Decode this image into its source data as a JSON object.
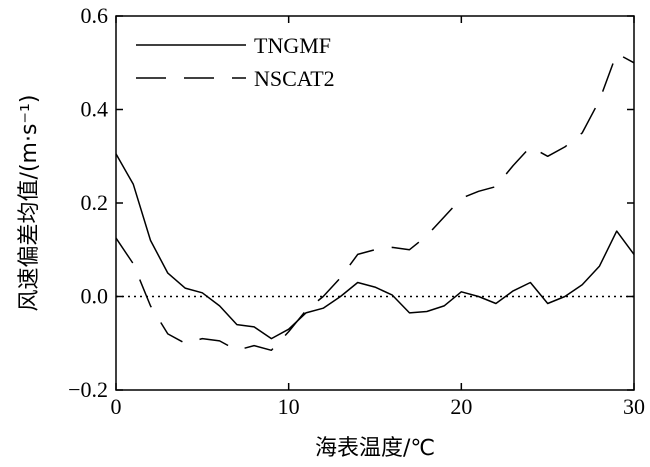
{
  "chart_data": {
    "type": "line",
    "xlabel": "海表温度/℃",
    "ylabel": "风速偏差均值/(m·s⁻¹)",
    "xlim": [
      0,
      30
    ],
    "ylim": [
      -0.2,
      0.6
    ],
    "xticks": [
      "0",
      "10",
      "20",
      "30"
    ],
    "yticks": [
      "−0.2",
      "0.0",
      "0.2",
      "0.4",
      "0.6"
    ],
    "legend_position": "top-left",
    "series": [
      {
        "name": "TNGMF",
        "style": "solid",
        "x": [
          0,
          1,
          2,
          3,
          4,
          5,
          6,
          7,
          8,
          9,
          10,
          11,
          12,
          13,
          14,
          15,
          16,
          17,
          18,
          19,
          20,
          21,
          22,
          23,
          24,
          25,
          26,
          27,
          28,
          29,
          30
        ],
        "y": [
          0.305,
          0.24,
          0.12,
          0.05,
          0.018,
          0.008,
          -0.02,
          -0.06,
          -0.065,
          -0.09,
          -0.07,
          -0.035,
          -0.025,
          0.0,
          0.03,
          0.02,
          0.003,
          -0.035,
          -0.032,
          -0.02,
          0.01,
          0.0,
          -0.015,
          0.012,
          0.03,
          -0.015,
          0.0,
          0.025,
          0.065,
          0.14,
          0.09
        ]
      },
      {
        "name": "NSCAT2",
        "style": "dashed",
        "x": [
          0,
          1,
          2,
          3,
          4,
          5,
          6,
          7,
          8,
          9,
          10,
          11,
          12,
          13,
          14,
          15,
          16,
          17,
          18,
          19,
          20,
          21,
          22,
          23,
          24,
          25,
          26,
          27,
          28,
          29,
          30
        ],
        "y": [
          0.125,
          0.07,
          -0.02,
          -0.08,
          -0.1,
          -0.09,
          -0.095,
          -0.115,
          -0.105,
          -0.115,
          -0.075,
          -0.03,
          0.0,
          0.04,
          0.09,
          0.1,
          0.105,
          0.1,
          0.13,
          0.17,
          0.21,
          0.225,
          0.235,
          0.28,
          0.32,
          0.3,
          0.32,
          0.35,
          0.42,
          0.52,
          0.5
        ]
      }
    ],
    "reference_line": {
      "y": 0.0,
      "style": "dotted"
    }
  }
}
